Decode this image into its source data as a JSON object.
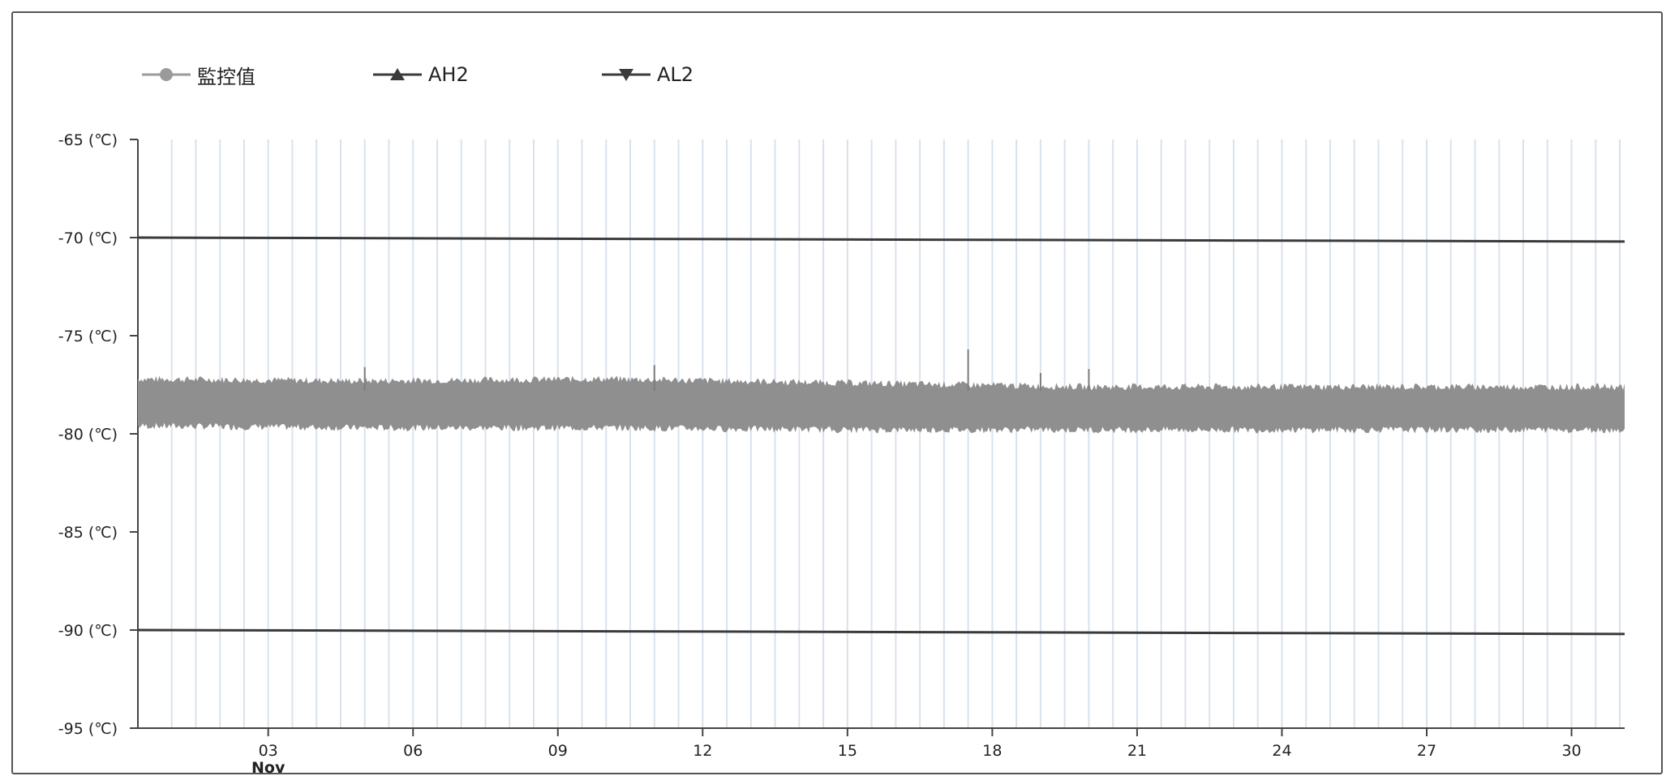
{
  "chart_data": {
    "type": "line",
    "legend": [
      {
        "label": "監控值",
        "marker": "circle",
        "color": "#9a9a9a"
      },
      {
        "label": "AH2",
        "marker": "triangle-up",
        "color": "#3a3a3a"
      },
      {
        "label": "AL2",
        "marker": "triangle-down",
        "color": "#3a3a3a"
      }
    ],
    "y_ticks": [
      "-65 (℃)",
      "-70 (℃)",
      "-75 (℃)",
      "-80 (℃)",
      "-85 (℃)",
      "-90 (℃)",
      "-95 (℃)"
    ],
    "y_tick_values": [
      -65,
      -70,
      -75,
      -80,
      -85,
      -90,
      -95
    ],
    "ylim": [
      -95,
      -65
    ],
    "x_ticks": [
      {
        "day": 3,
        "label": "03",
        "sublabel": "Nov"
      },
      {
        "day": 6,
        "label": "06"
      },
      {
        "day": 9,
        "label": "09"
      },
      {
        "day": 12,
        "label": "12"
      },
      {
        "day": 15,
        "label": "15"
      },
      {
        "day": 18,
        "label": "18"
      },
      {
        "day": 21,
        "label": "21"
      },
      {
        "day": 24,
        "label": "24"
      },
      {
        "day": 27,
        "label": "27"
      },
      {
        "day": 30,
        "label": "30"
      }
    ],
    "xlim": [
      0.3,
      31.1
    ],
    "series": [
      {
        "name": "監控值",
        "color": "#8f8f8f",
        "band": {
          "x": [
            0.3,
            5,
            10,
            15,
            20,
            25,
            31.1
          ],
          "low": [
            -79.6,
            -79.7,
            -79.7,
            -79.8,
            -79.8,
            -79.8,
            -79.8
          ],
          "high": [
            -77.2,
            -77.3,
            -77.2,
            -77.4,
            -77.6,
            -77.6,
            -77.6
          ]
        },
        "spikes": [
          {
            "x": 5.0,
            "y": -76.6
          },
          {
            "x": 11.0,
            "y": -76.5
          },
          {
            "x": 17.5,
            "y": -75.7
          },
          {
            "x": 19.0,
            "y": -76.9
          },
          {
            "x": 20.0,
            "y": -76.7
          }
        ]
      },
      {
        "name": "AH2",
        "color": "#3a3a3a",
        "x": [
          0.3,
          31.1
        ],
        "y": [
          -70,
          -70.2
        ]
      },
      {
        "name": "AL2",
        "color": "#3a3a3a",
        "x": [
          0.3,
          31.1
        ],
        "y": [
          -90,
          -90.2
        ]
      }
    ],
    "grid": "vertical",
    "legend_position": "top-left"
  }
}
